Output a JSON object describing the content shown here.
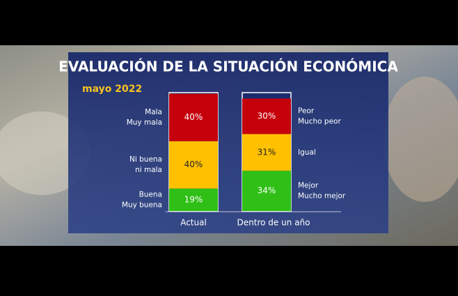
{
  "chart_data": {
    "type": "bar",
    "stacked": true,
    "title": "EVALUACIÓN DE LA SITUACIÓN ECONÓMICA",
    "subtitle": "mayo 2022",
    "categories": [
      "Actual",
      "Dentro de un año"
    ],
    "ylim": [
      0,
      100
    ],
    "series": [
      {
        "color": "#2fbf16",
        "labels": [
          [
            "Buena",
            "Muy buena"
          ],
          [
            "Mejor",
            "Mucho mejor"
          ]
        ],
        "values": [
          19,
          34
        ],
        "value_labels": [
          "19%",
          "34%"
        ]
      },
      {
        "color": "#ffc000",
        "labels": [
          [
            "Ni buena",
            "ni mala"
          ],
          [
            "Igual"
          ]
        ],
        "values": [
          40,
          31
        ],
        "value_labels": [
          "40%",
          "31%"
        ]
      },
      {
        "color": "#c5000b",
        "labels": [
          [
            "Mala",
            "Muy mala"
          ],
          [
            "Peor",
            "Mucho peor"
          ]
        ],
        "values": [
          40,
          30
        ],
        "value_labels": [
          "40%",
          "30%"
        ]
      }
    ]
  }
}
